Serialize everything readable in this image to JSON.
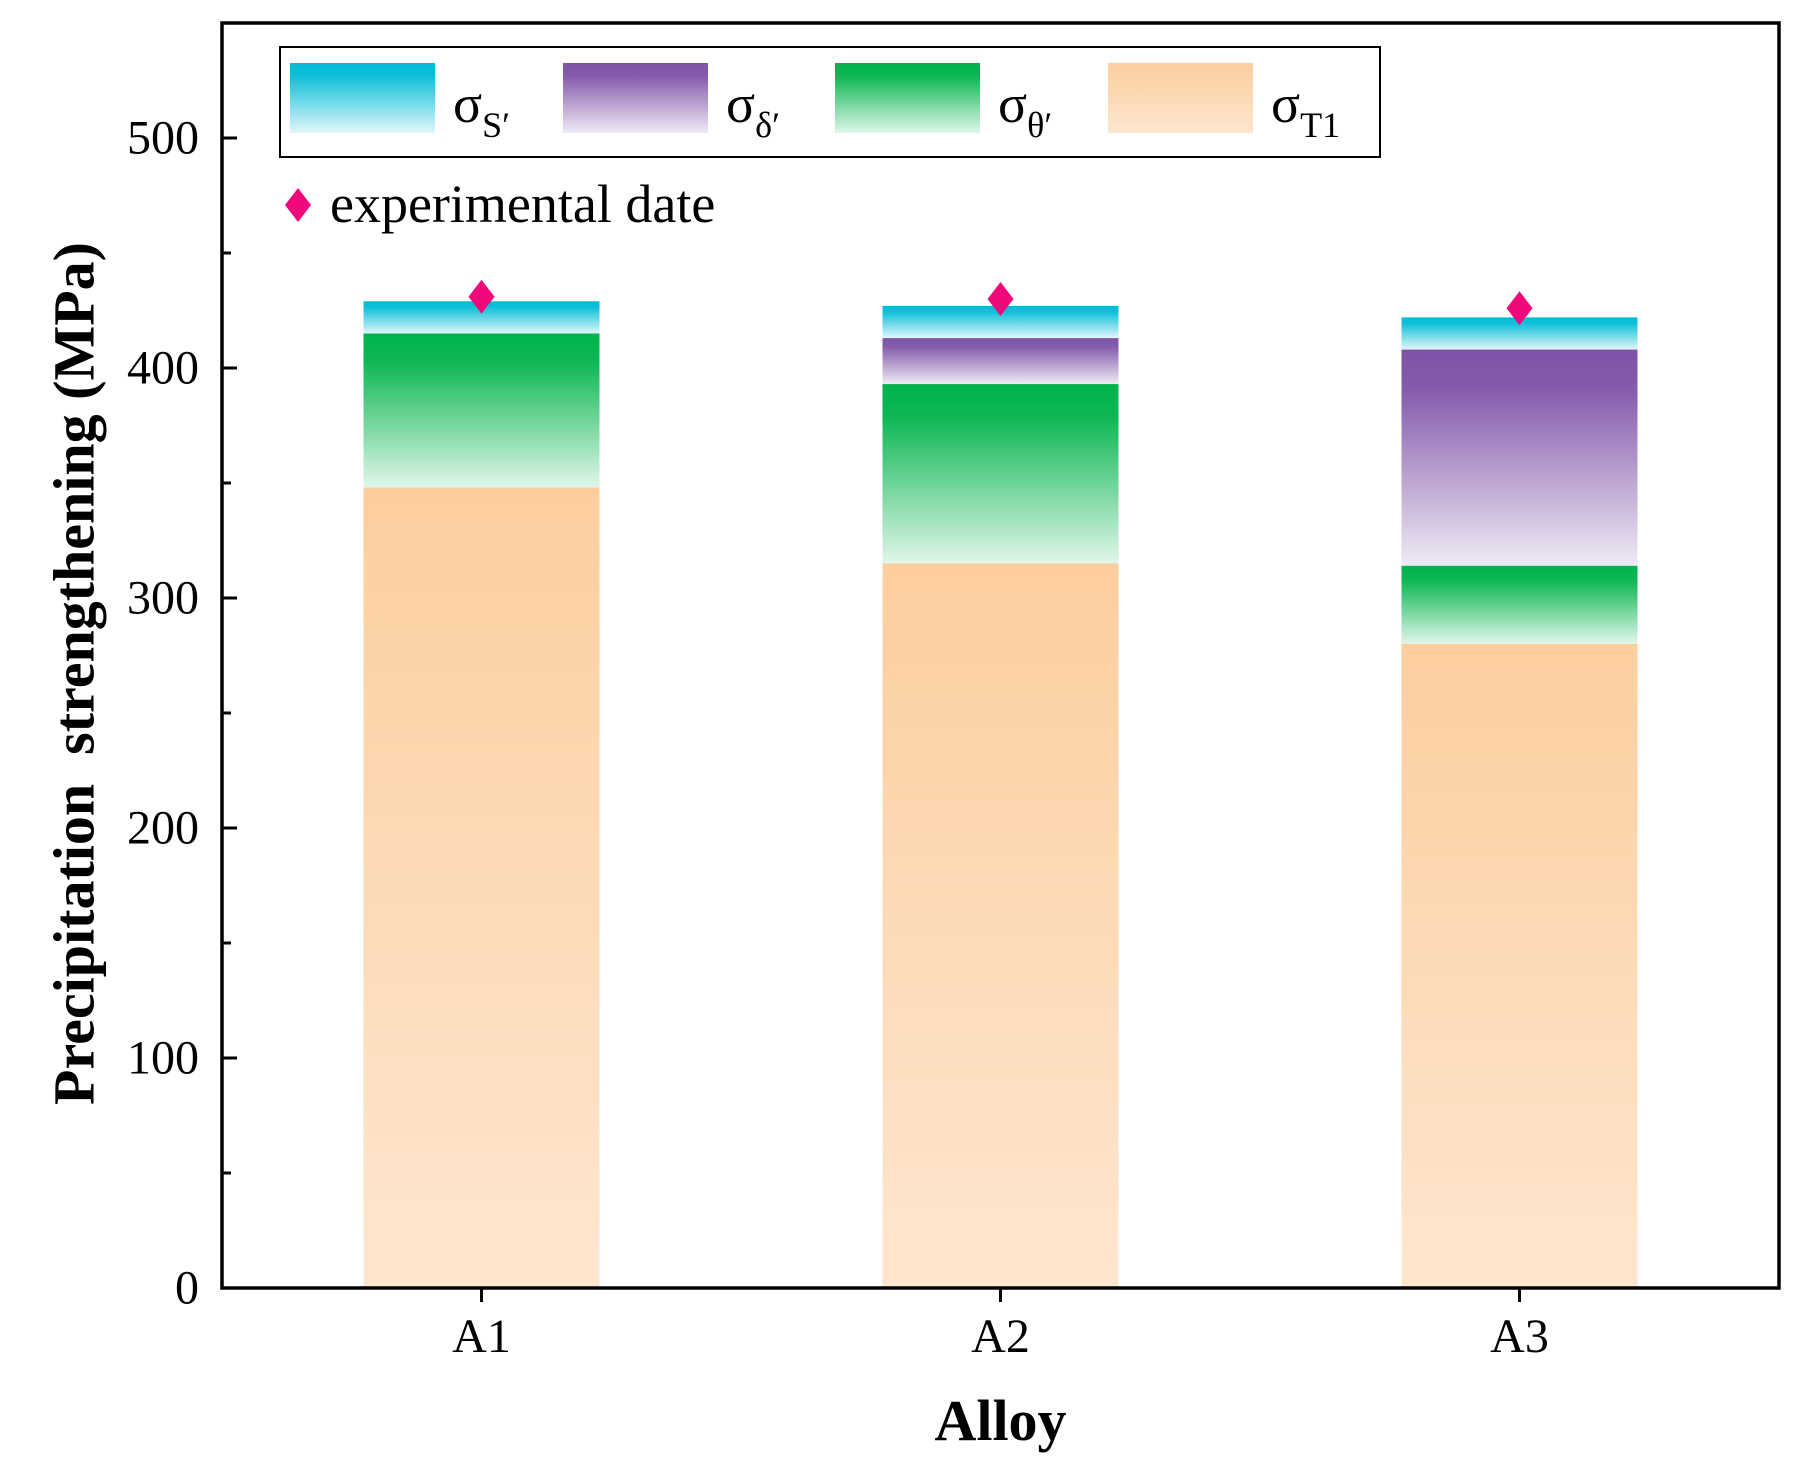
{
  "chart_data": {
    "type": "bar",
    "stacked": true,
    "categories": [
      "A1",
      "A2",
      "A3"
    ],
    "series": [
      {
        "name": "σT1",
        "base": "σ",
        "sub": "T1",
        "color": "#fcc894",
        "values": [
          348,
          315,
          280
        ]
      },
      {
        "name": "σθ′",
        "base": "σ",
        "sub": "θ′",
        "color": "#00b34a",
        "values": [
          67,
          78,
          34
        ]
      },
      {
        "name": "σδ′",
        "base": "σ",
        "sub": "δ′",
        "color": "#7e52a8",
        "values": [
          0,
          20,
          94
        ]
      },
      {
        "name": "σS′",
        "base": "σ",
        "sub": "S′",
        "color": "#00bcd6",
        "values": [
          14,
          14,
          14
        ]
      }
    ],
    "experimental": {
      "name": "experimental date",
      "color": "#f0087a",
      "values": [
        431,
        430,
        426
      ]
    },
    "title": "",
    "xlabel": "Alloy",
    "ylabel": "Precipitation  strengthening (MPa)",
    "ylim": [
      0,
      550
    ],
    "yticks": [
      0,
      100,
      200,
      300,
      400,
      500
    ],
    "legend_position": "top"
  }
}
